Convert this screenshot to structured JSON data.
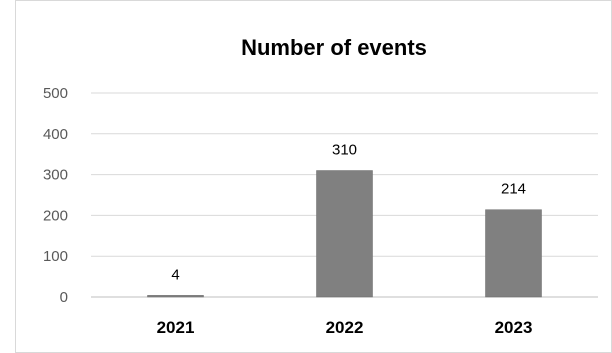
{
  "chart_data": {
    "type": "bar",
    "title": "Number of events",
    "categories": [
      "2021",
      "2022",
      "2023"
    ],
    "values": [
      4,
      310,
      214
    ],
    "data_labels": [
      "4",
      "310",
      "214"
    ],
    "ylim": [
      0,
      500
    ],
    "yticks": [
      "0",
      "100",
      "200",
      "300",
      "400",
      "500"
    ],
    "grid": true,
    "legend": "none",
    "bar_color": "#808080"
  }
}
